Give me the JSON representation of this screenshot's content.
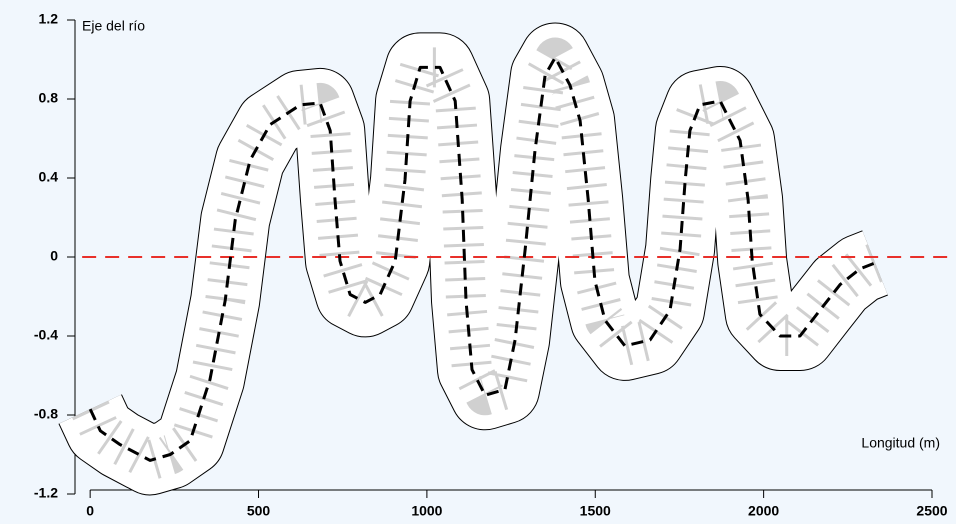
{
  "chart_data": {
    "type": "line",
    "y_label": "Eje del río",
    "x_label": "Longitud (m)",
    "xlim": [
      -45,
      2500
    ],
    "ylim": [
      -1.2,
      1.2
    ],
    "xticks": [
      0,
      500,
      1000,
      1500,
      2000,
      2500
    ],
    "yticks": [
      -1.2,
      -0.8,
      -0.4,
      0,
      0.4,
      0.8,
      1.2
    ],
    "reference_line": 0,
    "reference_color": "#e8302a",
    "color": "#000000",
    "x": [
      0,
      30,
      89,
      178,
      238,
      297,
      356,
      401,
      431,
      475,
      534,
      624,
      683,
      713,
      727,
      742,
      772,
      817,
      861,
      906,
      935,
      950,
      980,
      1039,
      1084,
      1105,
      1116,
      1134,
      1173,
      1232,
      1262,
      1292,
      1321,
      1351,
      1381,
      1425,
      1455,
      1479,
      1499,
      1529,
      1588,
      1663,
      1722,
      1752,
      1767,
      1781,
      1811,
      1871,
      1930,
      1954,
      1966,
      1989,
      2049,
      2108,
      2167,
      2227,
      2286,
      2331
    ],
    "values": [
      -0.77,
      -0.88,
      -0.95,
      -1.03,
      -1.0,
      -0.93,
      -0.62,
      -0.22,
      0.19,
      0.49,
      0.67,
      0.77,
      0.78,
      0.64,
      0.29,
      -0.02,
      -0.19,
      -0.23,
      -0.19,
      -0.02,
      0.39,
      0.79,
      0.96,
      0.96,
      0.79,
      0.29,
      -0.22,
      -0.57,
      -0.7,
      -0.67,
      -0.42,
      0.04,
      0.54,
      0.92,
      1.01,
      0.87,
      0.69,
      0.29,
      -0.12,
      -0.32,
      -0.45,
      -0.42,
      -0.27,
      0.04,
      0.39,
      0.64,
      0.77,
      0.79,
      0.59,
      0.29,
      -0.02,
      -0.29,
      -0.4,
      -0.4,
      -0.27,
      -0.14,
      -0.06,
      -0.03
    ]
  }
}
